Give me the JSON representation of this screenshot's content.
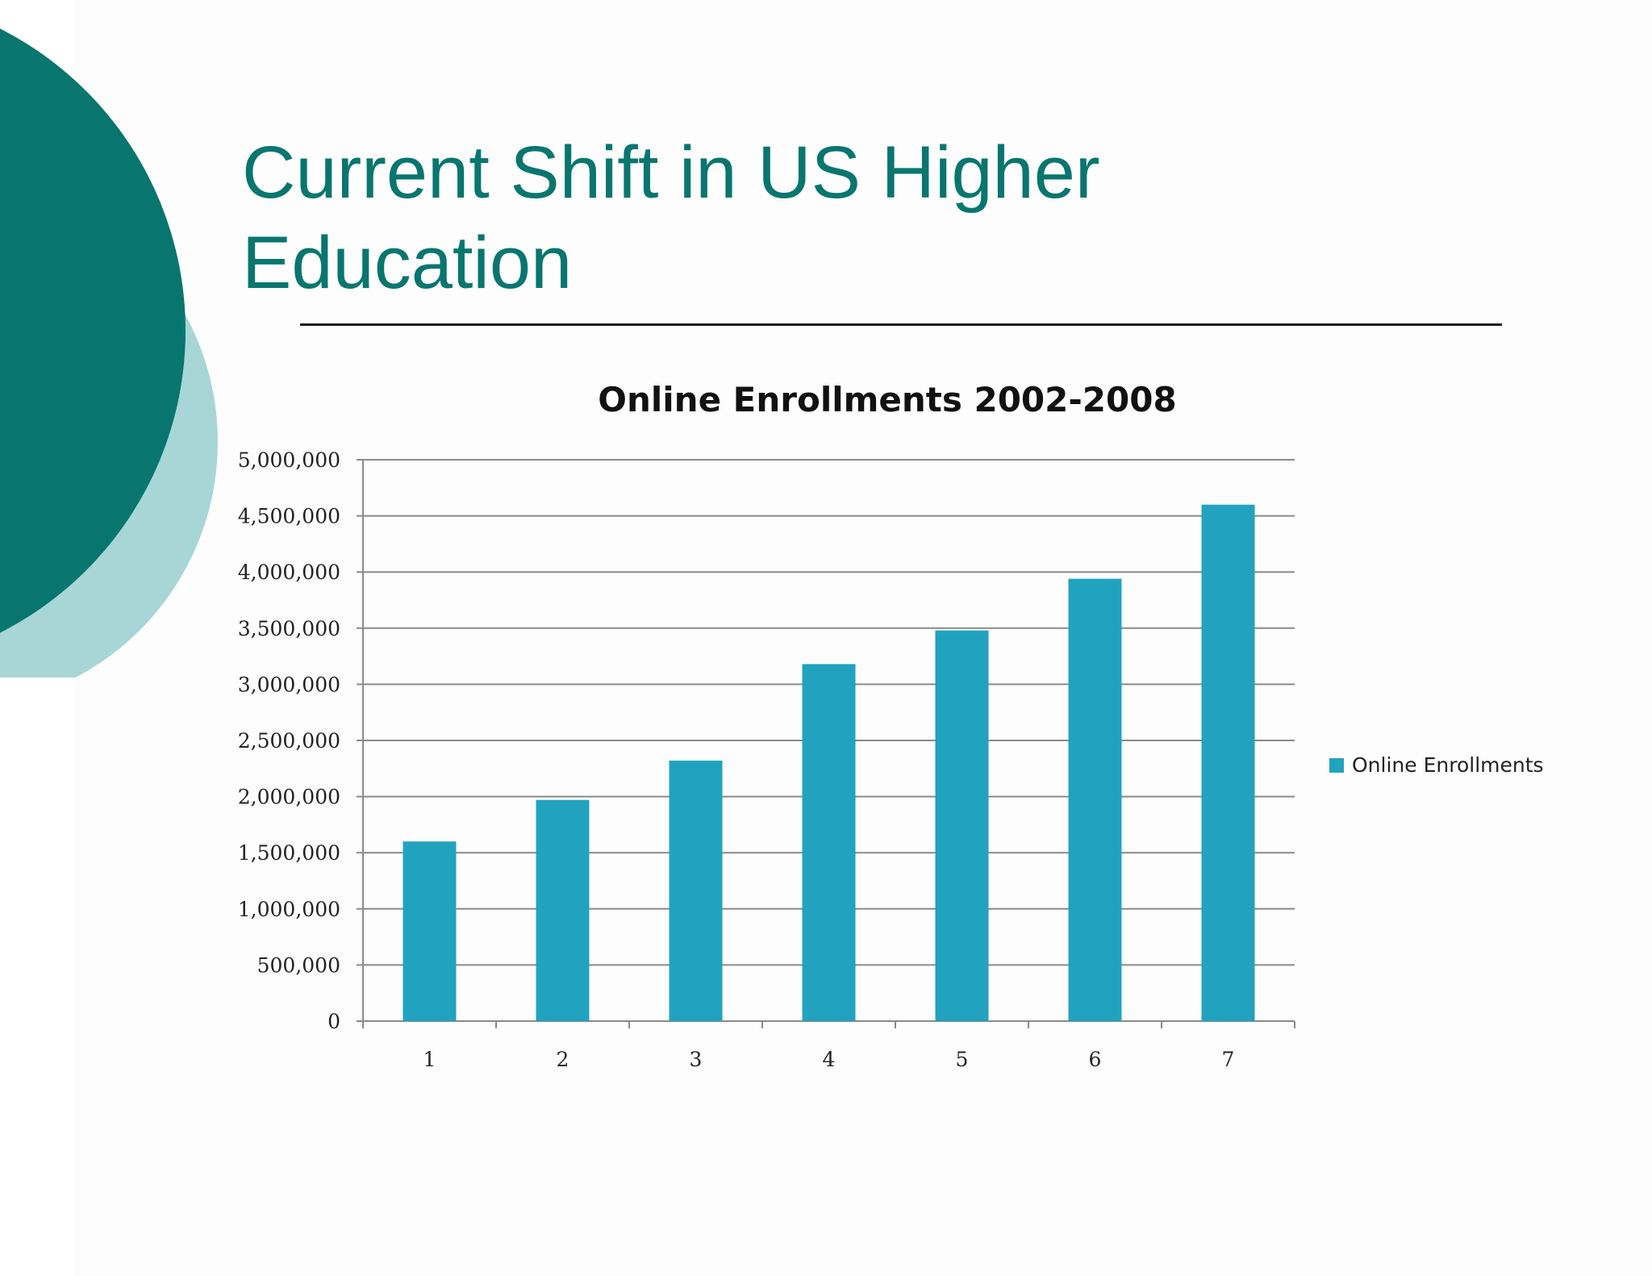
{
  "slide": {
    "title": "Current Shift in US Higher Education",
    "accent_color": "#08766f",
    "accent_light_color": "#a8d6d6"
  },
  "chart_data": {
    "type": "bar",
    "title": "Online Enrollments 2002-2008",
    "xlabel": "",
    "ylabel": "",
    "categories": [
      "1",
      "2",
      "3",
      "4",
      "5",
      "6",
      "7"
    ],
    "series": [
      {
        "name": "Online Enrollments",
        "color": "#21a3bf",
        "values": [
          1600000,
          1970000,
          2320000,
          3180000,
          3480000,
          3940000,
          4600000
        ]
      }
    ],
    "ylim": [
      0,
      5000000
    ],
    "yticks": [
      "0",
      "500,000",
      "1,000,000",
      "1,500,000",
      "2,000,000",
      "2,500,000",
      "3,000,000",
      "3,500,000",
      "4,000,000",
      "4,500,000",
      "5,000,000"
    ],
    "grid": true,
    "legend_position": "right"
  }
}
